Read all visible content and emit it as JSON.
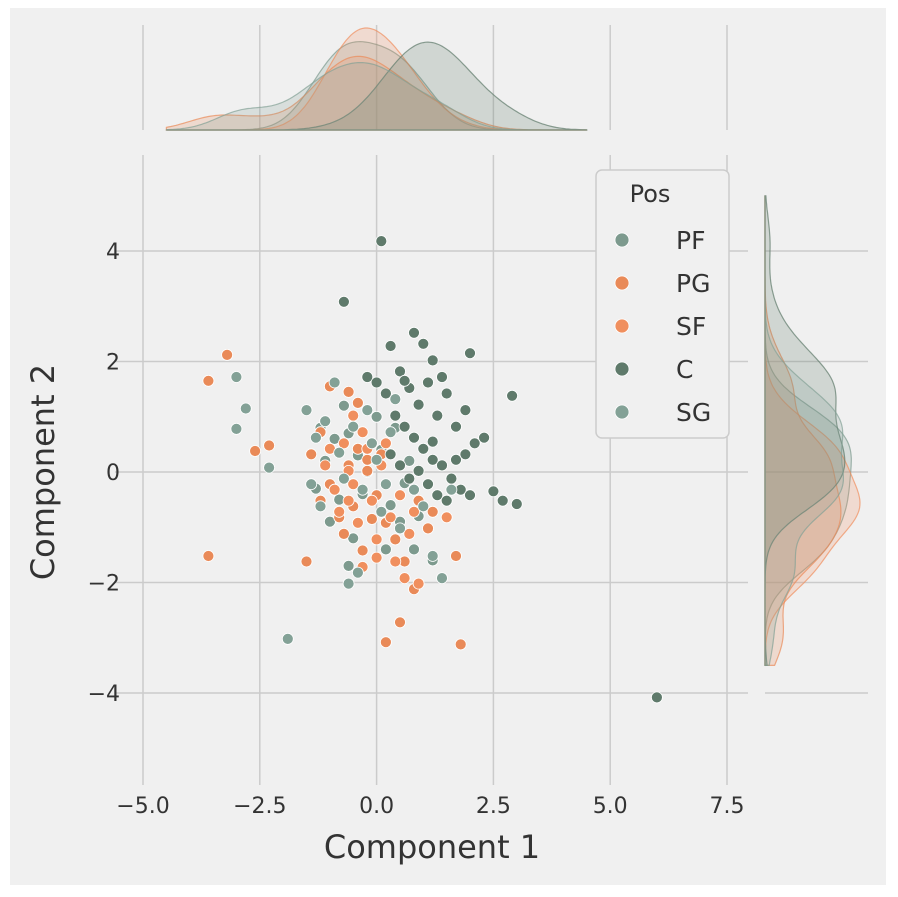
{
  "chart_data": {
    "type": "scatter",
    "title": "",
    "xlabel": "Component 1",
    "ylabel": "Component 2",
    "xlim": [
      -5.5,
      8.0
    ],
    "ylim": [
      -5.5,
      5.8
    ],
    "x_ticks": [
      -5.0,
      -2.5,
      0.0,
      2.5,
      5.0,
      7.5
    ],
    "x_tick_labels": [
      "−5.0",
      "−2.5",
      "0.0",
      "2.5",
      "5.0",
      "7.5"
    ],
    "y_ticks": [
      -4,
      -2,
      0,
      2,
      4
    ],
    "y_tick_labels": [
      "−4",
      "−2",
      "0",
      "2",
      "4"
    ],
    "grid": true,
    "legend_title": "Pos",
    "legend_position": "upper-right",
    "marginal_distributions": "kde",
    "series": [
      {
        "name": "PF",
        "color": "#7d9a8e",
        "points": [
          [
            -0.9,
            0.6
          ],
          [
            -1.1,
            0.2
          ],
          [
            -0.6,
            0.7
          ],
          [
            -0.4,
            0.3
          ],
          [
            -1.3,
            -0.3
          ],
          [
            -0.8,
            -0.5
          ],
          [
            -0.2,
            0.0
          ],
          [
            0.1,
            0.4
          ],
          [
            0.3,
            -0.6
          ],
          [
            0.5,
            -0.9
          ],
          [
            -0.5,
            -1.2
          ],
          [
            0.2,
            -1.4
          ],
          [
            0.6,
            -0.2
          ],
          [
            -1.0,
            -0.9
          ],
          [
            -1.2,
            0.8
          ],
          [
            0.0,
            1.0
          ],
          [
            0.4,
            0.8
          ],
          [
            0.7,
            0.2
          ],
          [
            -0.3,
            -0.4
          ],
          [
            0.9,
            -0.8
          ],
          [
            -0.7,
            1.2
          ],
          [
            1.2,
            -1.6
          ],
          [
            -0.6,
            -1.7
          ],
          [
            0.8,
            -1.4
          ]
        ]
      },
      {
        "name": "PG",
        "color": "#e98a58",
        "points": [
          [
            -3.6,
            1.65
          ],
          [
            -3.2,
            2.12
          ],
          [
            -3.6,
            -1.52
          ],
          [
            -2.6,
            0.38
          ],
          [
            -2.3,
            0.48
          ],
          [
            -1.4,
            0.32
          ],
          [
            -1.2,
            -0.52
          ],
          [
            -1.0,
            -0.22
          ],
          [
            -0.8,
            -0.82
          ],
          [
            -0.6,
            0.12
          ],
          [
            -0.4,
            0.42
          ],
          [
            -0.2,
            0.02
          ],
          [
            0.0,
            -0.42
          ],
          [
            0.2,
            -0.92
          ],
          [
            0.4,
            -1.22
          ],
          [
            0.6,
            -1.62
          ],
          [
            0.8,
            -2.12
          ],
          [
            0.5,
            -2.72
          ],
          [
            0.2,
            -3.08
          ],
          [
            1.8,
            -3.12
          ],
          [
            1.7,
            -1.52
          ],
          [
            1.2,
            -0.72
          ],
          [
            -1.0,
            1.55
          ],
          [
            -0.6,
            1.45
          ],
          [
            -0.4,
            1.25
          ],
          [
            -1.2,
            0.72
          ],
          [
            -0.2,
            0.22
          ],
          [
            0.1,
            0.32
          ],
          [
            -0.7,
            -1.12
          ],
          [
            -0.3,
            -1.42
          ],
          [
            -0.9,
            -0.32
          ],
          [
            0.9,
            -0.52
          ],
          [
            1.1,
            -1.02
          ],
          [
            -0.5,
            -0.62
          ],
          [
            -0.1,
            -0.85
          ],
          [
            -1.5,
            -1.62
          ]
        ]
      },
      {
        "name": "SF",
        "color": "#f08f5e",
        "points": [
          [
            -1.1,
            0.12
          ],
          [
            -0.9,
            -0.32
          ],
          [
            -0.7,
            0.52
          ],
          [
            -0.5,
            -0.22
          ],
          [
            -0.3,
            0.72
          ],
          [
            -0.1,
            -0.52
          ],
          [
            0.1,
            0.12
          ],
          [
            0.3,
            -0.82
          ],
          [
            0.5,
            -0.42
          ],
          [
            0.7,
            -1.12
          ],
          [
            -0.8,
            -0.72
          ],
          [
            -0.6,
            0.02
          ],
          [
            -0.4,
            -0.92
          ],
          [
            -0.2,
            0.42
          ],
          [
            0.0,
            -1.22
          ],
          [
            0.4,
            -1.62
          ],
          [
            0.6,
            -1.92
          ],
          [
            0.9,
            -2.02
          ],
          [
            -1.0,
            0.42
          ],
          [
            -0.6,
            -0.52
          ],
          [
            0.2,
            0.52
          ],
          [
            0.8,
            -0.72
          ],
          [
            1.5,
            -0.82
          ],
          [
            -0.3,
            -1.72
          ],
          [
            0.0,
            -1.55
          ],
          [
            -0.5,
            1.02
          ]
        ]
      },
      {
        "name": "C",
        "color": "#5f7a6b",
        "points": [
          [
            0.1,
            4.18
          ],
          [
            -0.7,
            3.08
          ],
          [
            0.8,
            2.52
          ],
          [
            1.0,
            2.32
          ],
          [
            1.2,
            2.02
          ],
          [
            2.0,
            2.15
          ],
          [
            2.9,
            1.38
          ],
          [
            0.5,
            1.82
          ],
          [
            0.7,
            1.52
          ],
          [
            0.9,
            1.22
          ],
          [
            1.1,
            1.62
          ],
          [
            1.3,
            1.02
          ],
          [
            1.5,
            1.42
          ],
          [
            1.7,
            0.82
          ],
          [
            1.9,
            1.12
          ],
          [
            2.1,
            0.52
          ],
          [
            2.3,
            0.62
          ],
          [
            0.4,
            1.02
          ],
          [
            0.6,
            0.82
          ],
          [
            0.8,
            0.62
          ],
          [
            1.0,
            0.42
          ],
          [
            1.2,
            0.22
          ],
          [
            1.4,
            0.12
          ],
          [
            1.6,
            -0.12
          ],
          [
            1.8,
            -0.32
          ],
          [
            2.0,
            -0.42
          ],
          [
            2.5,
            -0.35
          ],
          [
            2.7,
            -0.52
          ],
          [
            3.0,
            -0.58
          ],
          [
            0.3,
            0.32
          ],
          [
            0.5,
            0.12
          ],
          [
            0.7,
            -0.12
          ],
          [
            0.9,
            0.02
          ],
          [
            1.1,
            -0.22
          ],
          [
            1.3,
            -0.42
          ],
          [
            1.5,
            -0.52
          ],
          [
            1.7,
            0.22
          ],
          [
            1.9,
            0.32
          ],
          [
            -0.2,
            1.72
          ],
          [
            0.0,
            1.62
          ],
          [
            0.2,
            1.42
          ],
          [
            6.0,
            -4.08
          ],
          [
            0.3,
            2.28
          ],
          [
            1.4,
            1.72
          ],
          [
            0.6,
            1.65
          ],
          [
            1.2,
            0.55
          ]
        ]
      },
      {
        "name": "SG",
        "color": "#83a196",
        "points": [
          [
            -3.0,
            1.72
          ],
          [
            -2.8,
            1.15
          ],
          [
            -3.0,
            0.78
          ],
          [
            -2.3,
            0.08
          ],
          [
            -1.9,
            -3.02
          ],
          [
            -1.5,
            1.12
          ],
          [
            -1.3,
            0.62
          ],
          [
            -1.1,
            0.92
          ],
          [
            -0.9,
            1.62
          ],
          [
            -0.7,
            -0.12
          ],
          [
            -0.5,
            0.82
          ],
          [
            -0.3,
            -0.32
          ],
          [
            -0.1,
            0.52
          ],
          [
            0.1,
            -0.72
          ],
          [
            0.3,
            0.72
          ],
          [
            0.5,
            -1.02
          ],
          [
            -0.6,
            -2.02
          ],
          [
            -0.4,
            -1.82
          ],
          [
            1.2,
            -1.52
          ],
          [
            1.4,
            -1.92
          ],
          [
            1.6,
            -0.32
          ],
          [
            -1.4,
            -0.22
          ],
          [
            -1.2,
            -0.62
          ],
          [
            -0.2,
            1.12
          ],
          [
            0.0,
            0.22
          ],
          [
            0.2,
            -0.22
          ],
          [
            0.8,
            -0.32
          ],
          [
            1.0,
            -0.62
          ],
          [
            -0.8,
            0.35
          ],
          [
            0.4,
            1.32
          ]
        ]
      }
    ]
  }
}
